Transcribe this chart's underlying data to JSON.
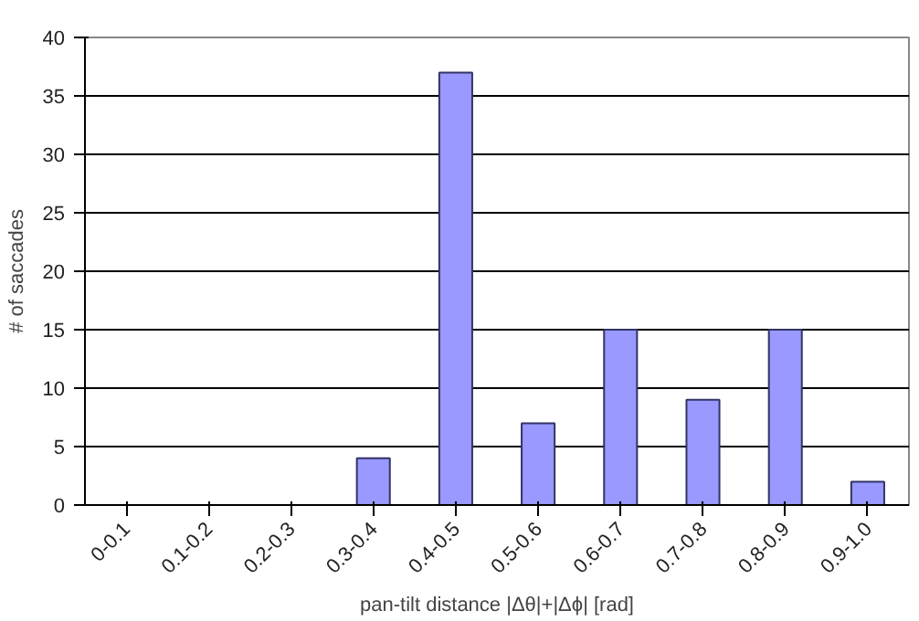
{
  "chart_data": {
    "type": "bar",
    "xlabel": "pan-tilt distance |Δθ|+|Δϕ| [rad]",
    "ylabel": "# of saccades",
    "categories": [
      "0-0.1",
      "0.1-0.2",
      "0.2-0.3",
      "0.3-0.4",
      "0.4-0.5",
      "0.5-0.6",
      "0.6-0.7",
      "0.7-0.8",
      "0.8-0.9",
      "0.9-1.0"
    ],
    "values": [
      0,
      0,
      0,
      4,
      37,
      7,
      15,
      9,
      15,
      2
    ],
    "color": "#9999ff",
    "ylim": [
      0,
      40
    ],
    "yticks": [
      0,
      5,
      10,
      15,
      20,
      25,
      30,
      35,
      40
    ],
    "grid": "y"
  }
}
